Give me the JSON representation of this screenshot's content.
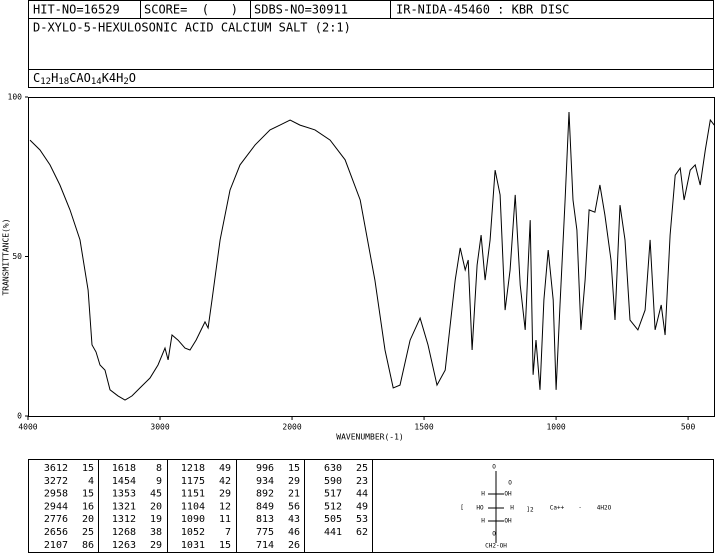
{
  "header": {
    "hit_no": "HIT-NO=16529",
    "score": "SCORE=  (   )",
    "sdbs_no": "SDBS-NO=30911",
    "ir_code": "IR-NIDA-45460 : KBR DISC",
    "compound": "D-XYLO-5-HEXULOSONIC ACID CALCIUM SALT (2:1)",
    "formula": [
      "C",
      "12",
      "H",
      "18",
      "CAO",
      "14",
      "K4H",
      "2",
      "O"
    ]
  },
  "chart_data": {
    "type": "line",
    "x_label": "WAVENUMBER(-1)",
    "y_label": "TRANSMITTANCE(%)",
    "xlim": [
      4000,
      400
    ],
    "xscale_break": 2000,
    "xticks": [
      4000,
      3000,
      2000,
      1500,
      1000,
      500
    ],
    "ylim": [
      0,
      100
    ],
    "yticks": [
      0,
      50,
      100
    ],
    "color": "#000000",
    "x": [
      3985,
      3909,
      3833,
      3758,
      3682,
      3606,
      3545,
      3515,
      3485,
      3455,
      3417,
      3379,
      3318,
      3265,
      3212,
      3152,
      3076,
      3015,
      2962,
      2939,
      2909,
      2864,
      2811,
      2773,
      2727,
      2697,
      2659,
      2636,
      2606,
      2545,
      2470,
      2394,
      2280,
      2167,
      2091,
      2015,
      1970,
      1913,
      1856,
      1799,
      1742,
      1686,
      1648,
      1617,
      1591,
      1553,
      1515,
      1485,
      1451,
      1420,
      1382,
      1363,
      1344,
      1333,
      1318,
      1299,
      1284,
      1269,
      1250,
      1231,
      1212,
      1193,
      1174,
      1155,
      1136,
      1117,
      1098,
      1087,
      1076,
      1061,
      1046,
      1030,
      1011,
      1000,
      985,
      966,
      951,
      936,
      921,
      906,
      890,
      875,
      853,
      834,
      815,
      792,
      777,
      758,
      739,
      720,
      690,
      663,
      644,
      625,
      602,
      587,
      568,
      549,
      530,
      515,
      492,
      473,
      454,
      435,
      416,
      401
    ],
    "values": [
      86.5,
      83.4,
      78.7,
      72.4,
      64.6,
      55.2,
      39.5,
      22.3,
      20.1,
      16.0,
      14.4,
      8.2,
      6.3,
      5.0,
      6.3,
      8.8,
      11.9,
      16.0,
      21.3,
      17.6,
      25.4,
      23.8,
      21.3,
      20.7,
      23.8,
      26.3,
      29.5,
      27.6,
      36.4,
      55.2,
      70.8,
      78.7,
      85.0,
      89.7,
      91.2,
      92.8,
      91.2,
      89.7,
      86.5,
      80.3,
      67.7,
      42.6,
      20.7,
      8.8,
      9.7,
      23.8,
      30.7,
      22.3,
      9.7,
      14.4,
      42.6,
      52.7,
      45.8,
      48.9,
      20.7,
      47.3,
      56.7,
      42.6,
      55.2,
      77.1,
      69.3,
      33.2,
      45.8,
      69.3,
      41.1,
      27.0,
      61.4,
      12.9,
      23.8,
      8.2,
      36.4,
      52.0,
      36.4,
      8.2,
      34.8,
      67.7,
      95.3,
      67.7,
      58.3,
      27.0,
      42.6,
      64.6,
      63.9,
      72.4,
      63.0,
      48.9,
      30.1,
      66.1,
      55.2,
      30.1,
      27.0,
      33.2,
      55.2,
      27.0,
      34.8,
      25.4,
      56.7,
      75.5,
      77.7,
      67.7,
      77.1,
      78.7,
      72.4,
      83.4,
      92.8,
      91.2
    ]
  },
  "peaks": [
    [
      [
        3612,
        15
      ],
      [
        3272,
        4
      ],
      [
        2958,
        15
      ],
      [
        2944,
        16
      ],
      [
        2776,
        20
      ],
      [
        2656,
        25
      ],
      [
        2107,
        86
      ]
    ],
    [
      [
        1618,
        8
      ],
      [
        1454,
        9
      ],
      [
        1353,
        45
      ],
      [
        1321,
        20
      ],
      [
        1312,
        19
      ],
      [
        1268,
        38
      ],
      [
        1263,
        29
      ]
    ],
    [
      [
        1218,
        49
      ],
      [
        1175,
        42
      ],
      [
        1151,
        29
      ],
      [
        1104,
        12
      ],
      [
        1090,
        11
      ],
      [
        1052,
        7
      ],
      [
        1031,
        15
      ]
    ],
    [
      [
        996,
        15
      ],
      [
        934,
        29
      ],
      [
        892,
        21
      ],
      [
        849,
        56
      ],
      [
        813,
        43
      ],
      [
        775,
        46
      ],
      [
        714,
        26
      ]
    ],
    [
      [
        630,
        25
      ],
      [
        590,
        23
      ],
      [
        517,
        44
      ],
      [
        512,
        49
      ],
      [
        505,
        53
      ],
      [
        441,
        62
      ]
    ]
  ],
  "structure": {
    "labels": [
      "O",
      "O",
      "H",
      "OH",
      "HO",
      "H",
      "H",
      "OH",
      "O",
      "CH2-OH",
      "[",
      "]2",
      "Ca++",
      "·",
      "4H2O"
    ]
  }
}
